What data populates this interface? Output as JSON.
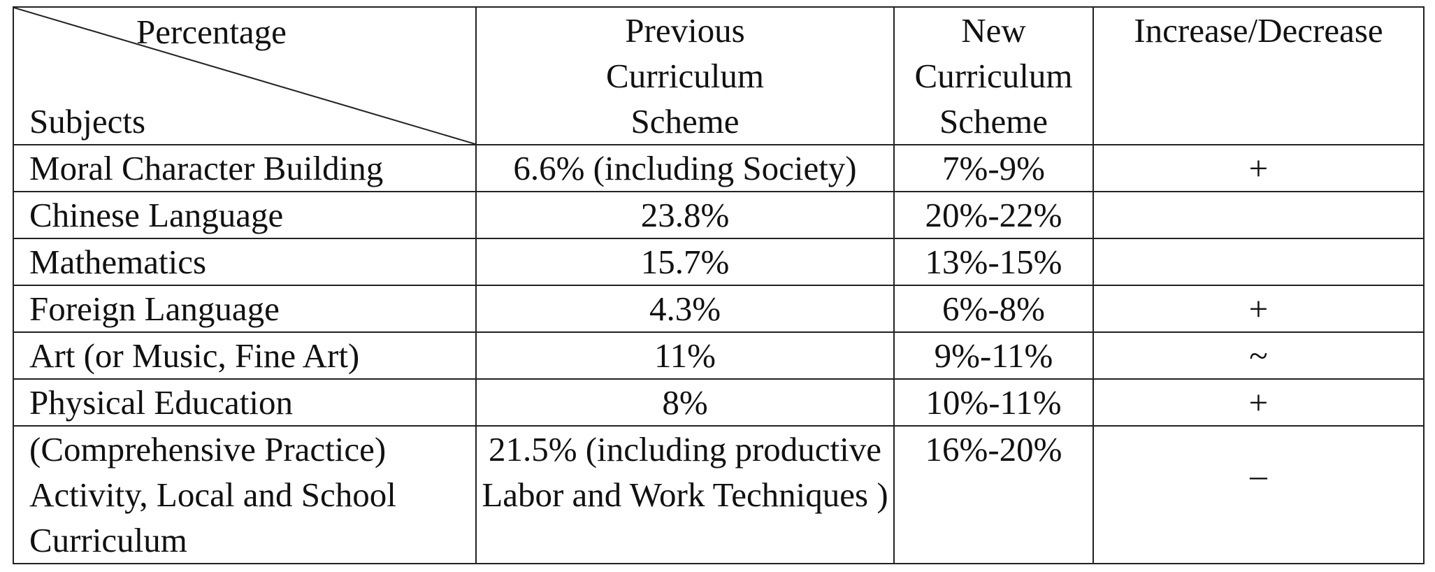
{
  "table": {
    "corner": {
      "top_label": "Percentage",
      "bottom_label": "Subjects"
    },
    "headers": {
      "previous": [
        "Previous",
        "Curriculum",
        "Scheme"
      ],
      "new": [
        "New",
        "Curriculum",
        "Scheme"
      ],
      "change": "Increase/Decrease"
    },
    "rows": [
      {
        "subject": "Moral Character Building",
        "previous": "6.6% (including Society)",
        "new": "7%-9%",
        "change": "+"
      },
      {
        "subject": "Chinese Language",
        "previous": "23.8%",
        "new": "20%-22%",
        "change": "_"
      },
      {
        "subject": "Mathematics",
        "previous": "15.7%",
        "new": "13%-15%",
        "change": "_"
      },
      {
        "subject": "Foreign Language",
        "previous": "4.3%",
        "new": "6%-8%",
        "change": "+"
      },
      {
        "subject": "Art (or Music, Fine Art)",
        "previous": "11%",
        "new": "9%-11%",
        "change": "~"
      },
      {
        "subject": "Physical Education",
        "previous": "8%",
        "new": "10%-11%",
        "change": "+"
      }
    ],
    "last_row": {
      "subject": "(Comprehensive Practice) Activity, Local and School Curriculum",
      "previous": "21.5% (including productive Labor and Work Techniques )",
      "new": "16%-20%",
      "change": "_"
    }
  }
}
